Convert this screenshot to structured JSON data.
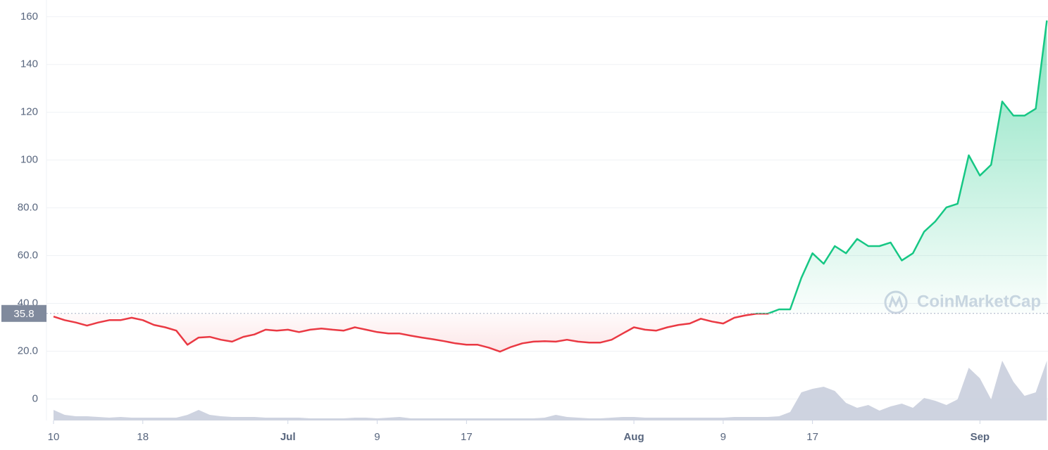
{
  "chart_data": {
    "type": "line",
    "watermark": "CoinMarketCap",
    "reference_price": 35.8,
    "up_color": "#16c784",
    "down_color": "#ea3943",
    "volume_color": "#c6cbdb",
    "grid": true,
    "xlim": [
      -0.63,
      89.1
    ],
    "ylim": [
      -9,
      167
    ],
    "yticks": [
      0,
      {
        "value": 20,
        "label": "20.0"
      },
      {
        "value": 40,
        "label": "40.0"
      },
      {
        "value": 60,
        "label": "60.0"
      },
      {
        "value": 80,
        "label": "80.0"
      },
      100,
      120,
      140,
      160
    ],
    "xticks": [
      {
        "value": 0,
        "label": "10"
      },
      {
        "value": 8,
        "label": "18"
      },
      {
        "value": 21,
        "label": "Jul"
      },
      {
        "value": 29,
        "label": "9"
      },
      {
        "value": 37,
        "label": "17"
      },
      {
        "value": 52,
        "label": "Aug"
      },
      {
        "value": 60,
        "label": "9"
      },
      {
        "value": 68,
        "label": "17"
      },
      {
        "value": 83,
        "label": "Sep"
      }
    ],
    "x": [
      0,
      1,
      2,
      3,
      4,
      5,
      6,
      7,
      8,
      9,
      10,
      11,
      12,
      13,
      14,
      15,
      16,
      17,
      18,
      19,
      20,
      21,
      22,
      23,
      24,
      25,
      26,
      27,
      28,
      29,
      30,
      31,
      32,
      33,
      34,
      35,
      36,
      37,
      38,
      39,
      40,
      41,
      42,
      43,
      44,
      45,
      46,
      47,
      48,
      49,
      50,
      51,
      52,
      53,
      54,
      55,
      56,
      57,
      58,
      59,
      60,
      61,
      62,
      63,
      64,
      65,
      66,
      67,
      68,
      69,
      70,
      71,
      72,
      73,
      74,
      75,
      76,
      77,
      78,
      79,
      80,
      81,
      82,
      83,
      84,
      85,
      86,
      87,
      88,
      89
    ],
    "values": [
      34.5,
      33,
      32,
      30.7,
      32,
      33,
      33,
      34,
      33,
      31,
      30,
      28.6,
      22.7,
      25.7,
      26,
      24.8,
      24,
      26,
      27,
      29,
      28.6,
      29,
      28,
      29,
      29.5,
      29,
      28.6,
      30,
      29,
      28,
      27.4,
      27.4,
      26.5,
      25.7,
      25,
      24.2,
      23.3,
      22.7,
      22.7,
      21.5,
      19.8,
      21.8,
      23.3,
      24,
      24.2,
      24,
      24.8,
      24,
      23.6,
      23.6,
      24.8,
      27.4,
      30,
      29,
      28.6,
      30,
      31,
      31.6,
      33.6,
      32.4,
      31.6,
      34,
      35,
      35.7,
      35.7,
      37.5,
      37.5,
      50.7,
      61,
      56.6,
      64,
      61,
      67,
      64,
      64,
      65.5,
      58,
      61,
      70,
      74.3,
      80.2,
      81.7,
      102,
      93.5,
      98,
      124.5,
      118.6,
      118.6,
      121.5,
      158.4
    ],
    "volume": [
      15,
      8,
      6,
      6,
      5,
      4,
      5,
      4,
      4,
      4,
      4,
      4,
      8,
      15,
      8,
      6,
      5,
      5,
      5,
      4,
      4,
      4,
      4,
      3,
      3,
      3,
      3,
      4,
      4,
      3,
      4,
      5,
      3,
      3,
      3,
      3,
      3,
      3,
      3,
      3,
      3,
      3,
      3,
      3,
      4,
      8,
      5,
      4,
      3,
      3,
      4,
      5,
      5,
      4,
      4,
      4,
      4,
      4,
      4,
      4,
      4,
      5,
      5,
      5,
      5,
      6,
      12,
      40,
      45,
      48,
      42,
      25,
      18,
      22,
      14,
      20,
      24,
      18,
      32,
      28,
      22,
      30,
      75,
      60,
      30,
      85,
      55,
      35,
      40,
      85
    ],
    "vlim": [
      0,
      100
    ]
  }
}
